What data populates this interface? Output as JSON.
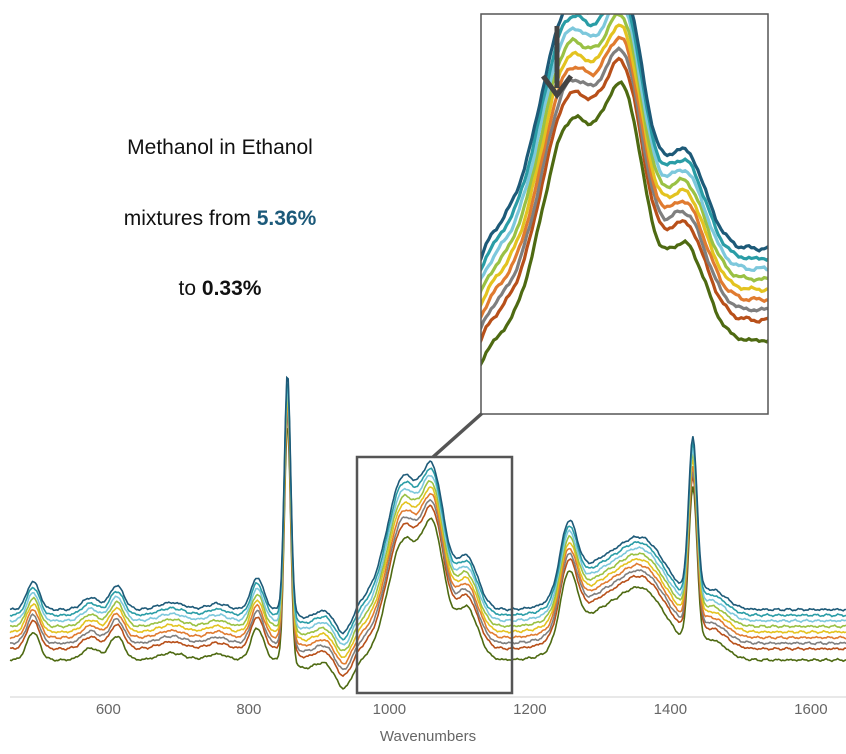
{
  "caption": {
    "line1": "Methanol in Ethanol",
    "line2_prefix": "mixtures from ",
    "line2_value": "5.36%",
    "line3_prefix": "to ",
    "line3_value": "0.33%",
    "highlight_color": "#1c5a7a"
  },
  "chart_data": {
    "type": "line",
    "title": "",
    "xlabel": "Wavenumbers",
    "ylabel": "",
    "xlim": [
      460,
      1650
    ],
    "xticks": [
      600,
      800,
      1000,
      1200,
      1400,
      1600
    ],
    "grid": false,
    "legend": "none",
    "series": [
      {
        "color": "#1d5a78",
        "offset": 9
      },
      {
        "color": "#2a9da6",
        "offset": 8
      },
      {
        "color": "#7dc8dc",
        "offset": 7
      },
      {
        "color": "#9ac144",
        "offset": 6
      },
      {
        "color": "#e3c320",
        "offset": 5
      },
      {
        "color": "#e07b30",
        "offset": 4
      },
      {
        "color": "#7f7f7f",
        "offset": 3
      },
      {
        "color": "#b8501a",
        "offset": 2
      },
      {
        "color": "#4e6a12",
        "offset": 0
      }
    ],
    "zoom_region": {
      "x_range": [
        950,
        1175
      ]
    },
    "annotations": [
      {
        "type": "arrow",
        "target_x": 990,
        "text": ""
      }
    ]
  }
}
